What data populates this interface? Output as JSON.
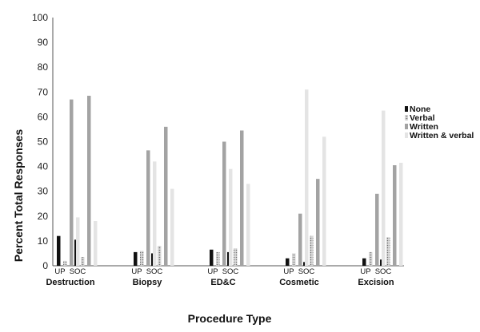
{
  "chart_data": {
    "type": "bar",
    "title": "",
    "xlabel": "Procedure Type",
    "ylabel": "Percent Total Responses",
    "ylim": [
      0,
      100
    ],
    "yticks": [
      0,
      10,
      20,
      30,
      40,
      50,
      60,
      70,
      80,
      90,
      100
    ],
    "grid": false,
    "legend": "right",
    "groups": [
      "Destruction",
      "Biopsy",
      "ED&C",
      "Cosmetic",
      "Excision"
    ],
    "subgroups": [
      "UP",
      "SOC"
    ],
    "categories": [
      "Destruction UP",
      "Destruction SOC",
      "Biopsy UP",
      "Biopsy SOC",
      "ED&C UP",
      "ED&C SOC",
      "Cosmetic UP",
      "Cosmetic SOC",
      "Excision UP",
      "Excision SOC"
    ],
    "series": [
      {
        "name": "None",
        "color": "#111111",
        "pattern": "solid",
        "values": [
          12,
          10.5,
          5.5,
          5,
          6.5,
          5.5,
          3,
          1.5,
          3,
          2.5
        ]
      },
      {
        "name": "Verbal",
        "color": "#bdbdbd",
        "pattern": "dots",
        "values": [
          2,
          3.5,
          6,
          8,
          5.5,
          7,
          5,
          12,
          5.5,
          11.5
        ]
      },
      {
        "name": "Written",
        "color": "#a3a3a3",
        "pattern": "solid",
        "values": [
          67,
          68.5,
          46.5,
          56,
          50,
          54.5,
          21,
          35,
          29,
          40.5
        ]
      },
      {
        "name": "Written & verbal",
        "color": "#e4e4e4",
        "pattern": "solid",
        "values": [
          19.5,
          18,
          42,
          31,
          39,
          33,
          71,
          52,
          62.5,
          41.5
        ]
      }
    ]
  }
}
